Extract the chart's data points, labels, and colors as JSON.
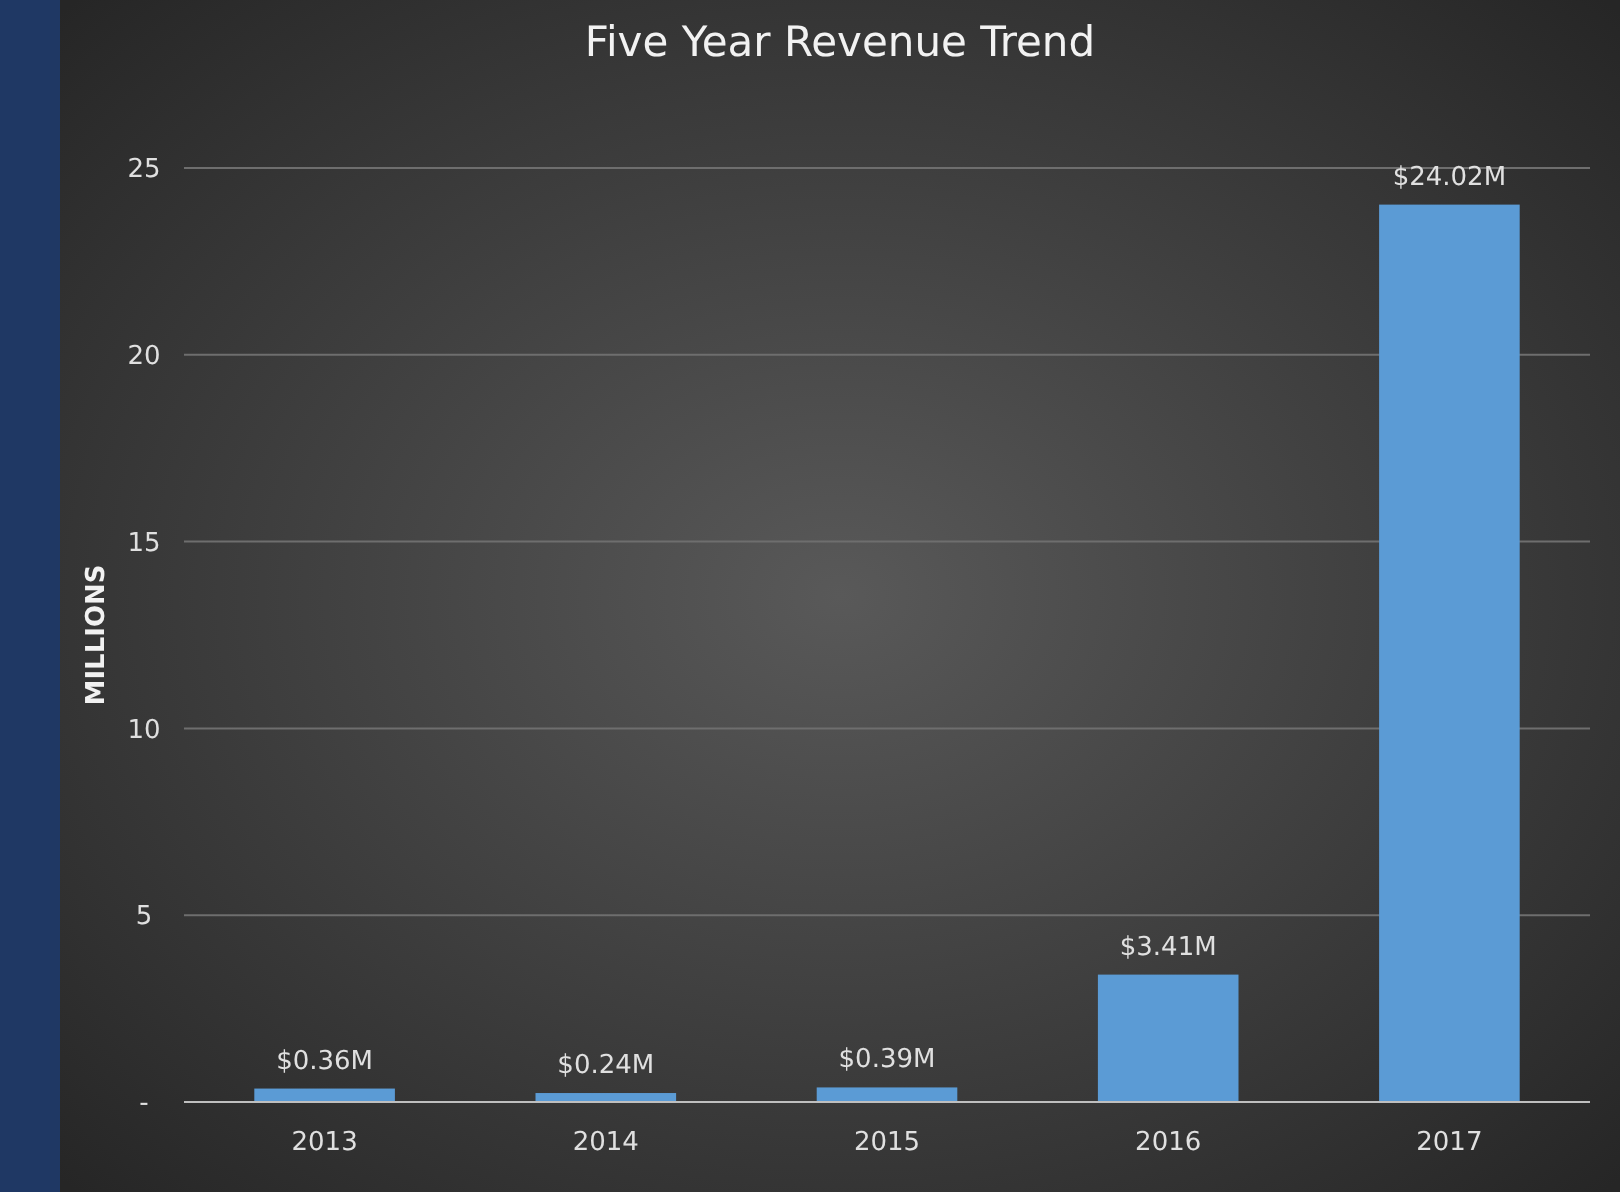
{
  "chart_data": {
    "type": "bar",
    "title": "Five Year Revenue Trend",
    "ylabel": "MILLIONS",
    "categories": [
      "2013",
      "2014",
      "2015",
      "2016",
      "2017"
    ],
    "values": [
      0.36,
      0.24,
      0.39,
      3.41,
      24.02
    ],
    "value_labels": [
      "$0.36M",
      "$0.24M",
      "$0.39M",
      "$3.41M",
      "$24.02M"
    ],
    "color": "#5b9bd5",
    "ylim": [
      0,
      25
    ],
    "yticks": [
      {
        "value": 0,
        "label": "-"
      },
      5,
      10,
      15,
      20,
      25
    ],
    "grid": "y"
  }
}
